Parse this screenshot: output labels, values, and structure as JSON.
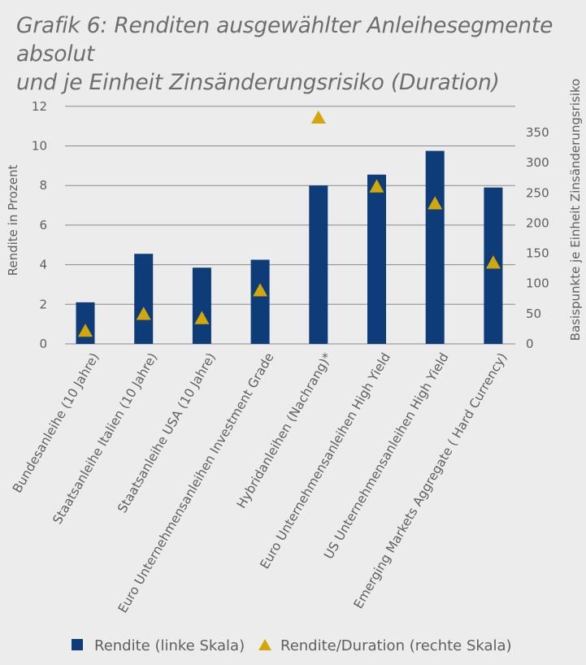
{
  "title_line1": "Grafik 6: Renditen ausgewählter Anleihesegmente absolut",
  "title_line2": "und je Einheit Zinsänderungsrisiko (Duration)",
  "colors": {
    "bar": "#0d3c79",
    "triangle": "#d3a70a",
    "grid": "#8a8a8a",
    "text": "#5f5f5f",
    "background": "#ececec"
  },
  "chart_data": {
    "type": "bar",
    "categories": [
      "Bundesanleihe (10 Jahre)",
      "Staatsanleihe Italien (10 Jahre)",
      "Staatsanleihe USA (10 Jahre)",
      "Euro Unternehmensanleihen Investment Grade",
      "Hybridanleihen (Nachrang)*",
      "Euro Unternehmensanleihen High Yield",
      "US Unternehmensanleihen High Yield",
      "Emerging Markets Aggregate ( Hard Currency)"
    ],
    "series": [
      {
        "name": "Rendite (linke Skala)",
        "axis": "left",
        "type": "bar",
        "values": [
          2.1,
          4.55,
          3.85,
          4.25,
          8.0,
          8.55,
          9.75,
          7.9
        ]
      },
      {
        "name": "Rendite/Duration (rechte Skala)",
        "axis": "right",
        "type": "marker",
        "marker": "triangle",
        "values": [
          22,
          50,
          43,
          89,
          375,
          261,
          233,
          135
        ]
      }
    ],
    "ylabel": "Rendite in Prozent",
    "y2label": "Basispunkte je Einheit Zinsänderungsrisiko",
    "ylim": [
      0,
      12
    ],
    "yticks": [
      0,
      2,
      4,
      6,
      8,
      10,
      12
    ],
    "y2lim": [
      0,
      392
    ],
    "y2ticks": [
      0,
      50,
      100,
      150,
      200,
      250,
      300,
      350
    ],
    "grid": true,
    "legend_position": "bottom"
  }
}
